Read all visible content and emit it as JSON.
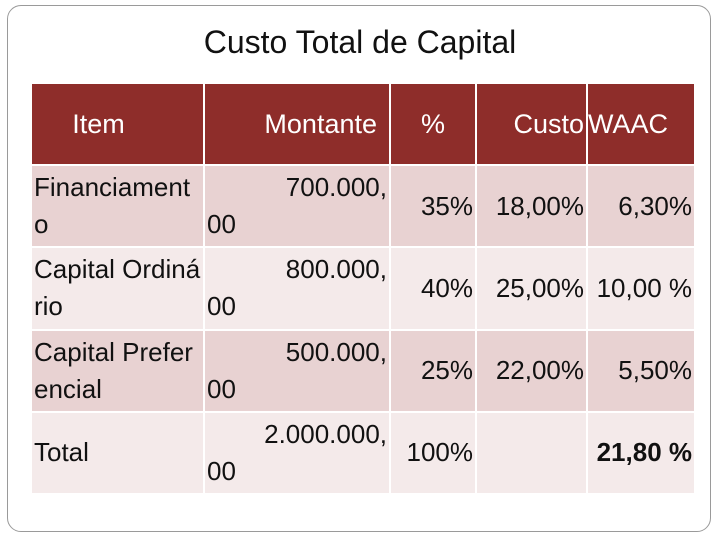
{
  "title": "Custo Total de Capital",
  "table": {
    "headers": {
      "item": "Item",
      "montante": "Montante",
      "pct": "%",
      "custo": "Custo",
      "waac": "WAAC"
    },
    "rows": [
      {
        "item": "Financiamento",
        "montante_top": "700.000,",
        "montante_bottom": "00",
        "pct": "35%",
        "custo": "18,00%",
        "waac": "6,30%"
      },
      {
        "item": "Capital Ordinário",
        "montante_top": "800.000,",
        "montante_bottom": "00",
        "pct": "40%",
        "custo": "25,00%",
        "waac": "10,00 %"
      },
      {
        "item": "Capital Preferencial",
        "montante_top": "500.000,",
        "montante_bottom": "00",
        "pct": "25%",
        "custo": "22,00%",
        "waac": "5,50%"
      },
      {
        "item": "Total",
        "montante_top": "2.000.000,",
        "montante_bottom": "00",
        "pct": "100%",
        "custo": "",
        "waac": "21,80 %"
      }
    ]
  }
}
